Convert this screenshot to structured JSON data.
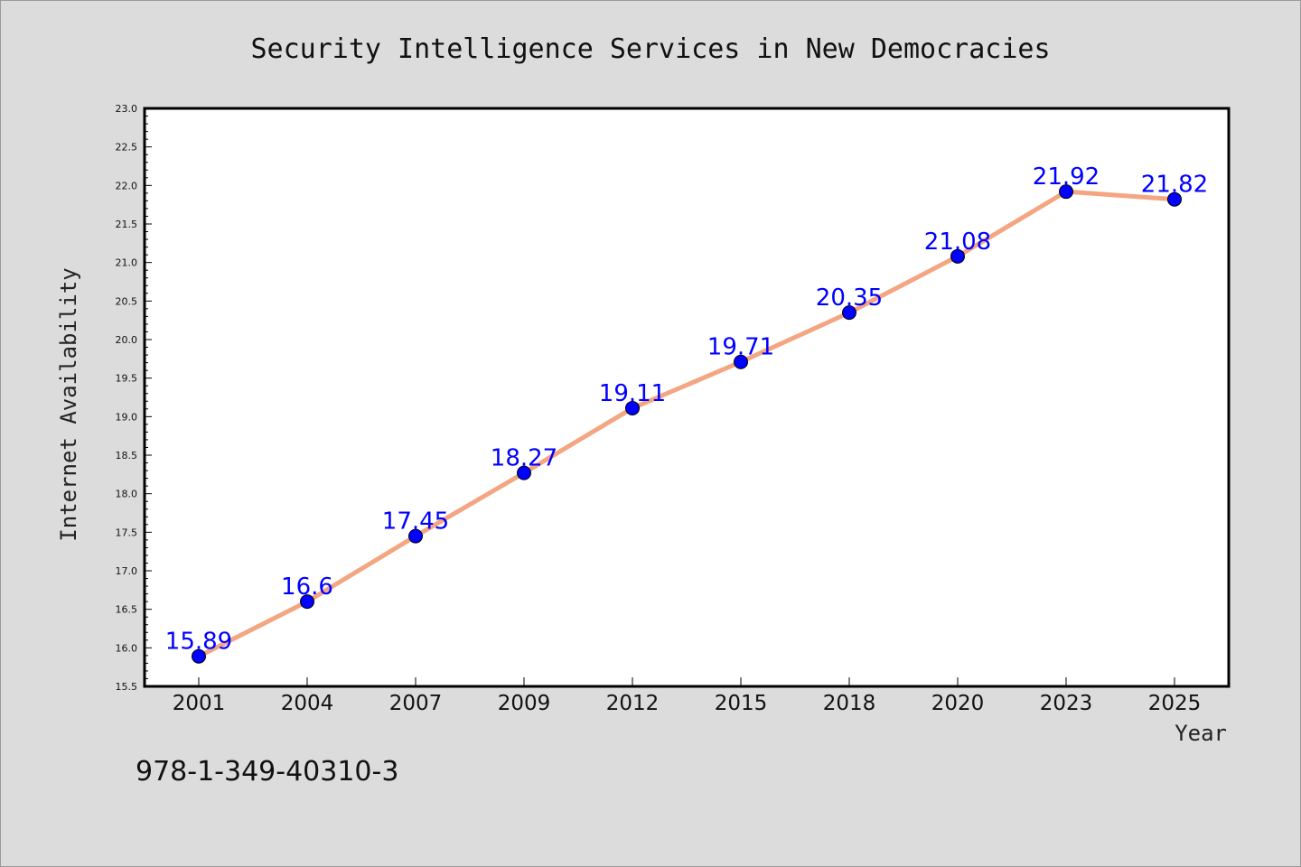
{
  "chart_data": {
    "type": "line",
    "title": "Security Intelligence Services in New Democracies",
    "xlabel": "Year",
    "ylabel": "Internet Availability",
    "categories": [
      "2001",
      "2004",
      "2007",
      "2009",
      "2012",
      "2015",
      "2018",
      "2020",
      "2023",
      "2025"
    ],
    "series": [
      {
        "values": [
          15.89,
          16.6,
          17.45,
          18.27,
          19.11,
          19.71,
          20.35,
          21.08,
          21.92,
          21.82
        ],
        "data_labels": [
          "15.89",
          "16.6",
          "17.45",
          "18.27",
          "19.11",
          "19.71",
          "20.35",
          "21.08",
          "21.92",
          "21.82"
        ],
        "line_color": "#f4a582",
        "marker_color": "#0000ff"
      }
    ],
    "ylim": [
      15.5,
      23.0
    ],
    "yticks": [
      "15.5",
      "16.0",
      "16.5",
      "17.0",
      "17.5",
      "18.0",
      "18.5",
      "19.0",
      "19.5",
      "20.0",
      "20.5",
      "21.0",
      "21.5",
      "22.0",
      "22.5",
      "23.0"
    ],
    "grid": false,
    "label_color": "#0000ff"
  },
  "footer": {
    "isbn": "978-1-349-40310-3"
  }
}
